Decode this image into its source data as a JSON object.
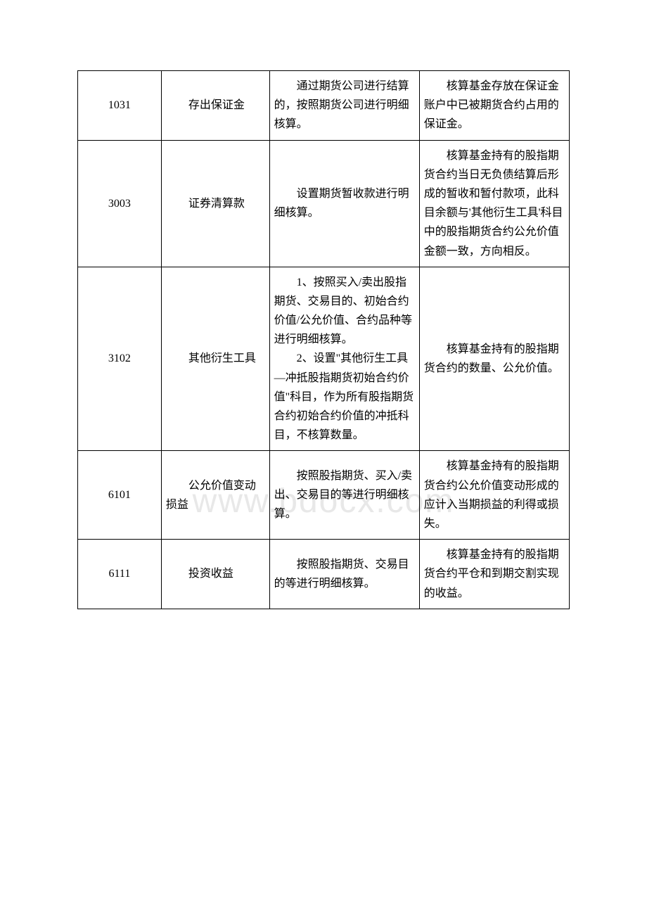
{
  "watermark": "www.bdocx.com",
  "table": {
    "columns_pct": [
      17,
      22,
      30.5,
      30.5
    ],
    "border_color": "#000000",
    "background_color": "#ffffff",
    "font_size": 16,
    "rows": [
      {
        "code": "1031",
        "name": "存出保证金",
        "detail": "通过期货公司进行结算的，按照期货公司进行明细核算。",
        "desc": "核算基金存放在保证金账户中已被期货合约占用的保证金。"
      },
      {
        "code": "3003",
        "name": "证券清算款",
        "detail": "设置期货暂收款进行明细核算。",
        "desc": "核算基金持有的股指期货合约当日无负债结算后形成的暂收和暂付款项，此科目余额与'其他衍生工具'科目中的股指期货合约公允价值金额一致，方向相反。"
      },
      {
        "code": "3102",
        "name": "其他衍生工具",
        "detail_p1": "1、按照买入/卖出股指期货、交易目的、初始合约价值/公允价值、合约品种等进行明细核算。",
        "detail_p2": "2、设置\"其他衍生工具—冲抵股指期货初始合约价值\"科目，作为所有股指期货合约初始合约价值的冲抵科目，不核算数量。",
        "desc": "核算基金持有的股指期货合约的数量、公允价值。"
      },
      {
        "code": "6101",
        "name": "公允价值变动损益",
        "detail": "按照股指期货、买入/卖出、交易目的等进行明细核算。",
        "desc": "核算基金持有的股指期货合约公允价值变动形成的应计入当期损益的利得或损失。"
      },
      {
        "code": "6111",
        "name": "投资收益",
        "detail": "按照股指期货、交易目的等进行明细核算。",
        "desc": "核算基金持有的股指期货合约平仓和到期交割实现的收益。"
      }
    ]
  }
}
